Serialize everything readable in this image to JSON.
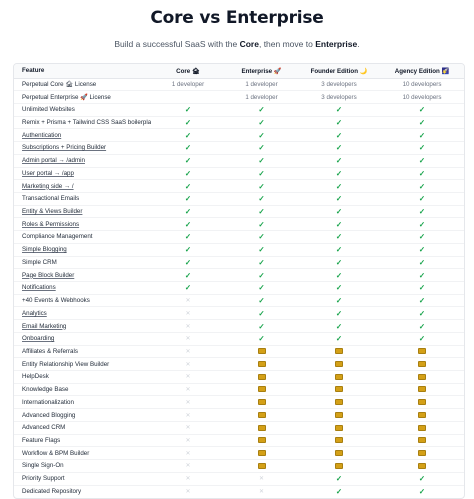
{
  "header": {
    "title": "Core vs Enterprise",
    "subtitle_pre": "Build a successful SaaS with the ",
    "subtitle_core": "Core",
    "subtitle_mid": ", then move to ",
    "subtitle_ent": "Enterprise",
    "subtitle_end": "."
  },
  "columns": [
    "Feature",
    "Core 🏚",
    "Enterprise 🚀",
    "Founder Edition 🌙",
    "Agency Edition 🌠"
  ],
  "symbols": {
    "yes": "✓",
    "no": "✕"
  },
  "colors": {
    "check": "#16a34a",
    "cross": "#d1d5db",
    "coin": "#d4a017"
  },
  "rows": [
    {
      "feature": "Perpetual Core 🏚 License",
      "link": false,
      "values": [
        "1 developer",
        "1 developer",
        "3 developers",
        "10 developers"
      ]
    },
    {
      "feature": "Perpetual Enterprise 🚀 License",
      "link": false,
      "values": [
        "",
        "1 developer",
        "3 developers",
        "10 developers"
      ]
    },
    {
      "feature": "Unlimited Websites",
      "link": false,
      "values": [
        "yes",
        "yes",
        "yes",
        "yes"
      ]
    },
    {
      "feature": "Remix + Prisma + Tailwind CSS SaaS boilerplate",
      "link": false,
      "values": [
        "yes",
        "yes",
        "yes",
        "yes"
      ]
    },
    {
      "feature": "Authentication",
      "link": true,
      "values": [
        "yes",
        "yes",
        "yes",
        "yes"
      ]
    },
    {
      "feature": "Subscriptions + Pricing Builder",
      "link": true,
      "values": [
        "yes",
        "yes",
        "yes",
        "yes"
      ]
    },
    {
      "feature": "Admin portal → /admin",
      "link": true,
      "values": [
        "yes",
        "yes",
        "yes",
        "yes"
      ]
    },
    {
      "feature": "User portal → /app",
      "link": true,
      "values": [
        "yes",
        "yes",
        "yes",
        "yes"
      ]
    },
    {
      "feature": "Marketing side → /",
      "link": true,
      "values": [
        "yes",
        "yes",
        "yes",
        "yes"
      ]
    },
    {
      "feature": "Transactional Emails",
      "link": false,
      "values": [
        "yes",
        "yes",
        "yes",
        "yes"
      ]
    },
    {
      "feature": "Entity & Views Builder",
      "link": true,
      "values": [
        "yes",
        "yes",
        "yes",
        "yes"
      ]
    },
    {
      "feature": "Roles & Permissions",
      "link": true,
      "values": [
        "yes",
        "yes",
        "yes",
        "yes"
      ]
    },
    {
      "feature": "Compliance Management",
      "link": false,
      "values": [
        "yes",
        "yes",
        "yes",
        "yes"
      ]
    },
    {
      "feature": "Simple Blogging",
      "link": true,
      "values": [
        "yes",
        "yes",
        "yes",
        "yes"
      ]
    },
    {
      "feature": "Simple CRM",
      "link": false,
      "values": [
        "yes",
        "yes",
        "yes",
        "yes"
      ]
    },
    {
      "feature": "Page Block Builder",
      "link": true,
      "values": [
        "yes",
        "yes",
        "yes",
        "yes"
      ]
    },
    {
      "feature": "Notifications",
      "link": true,
      "values": [
        "yes",
        "yes",
        "yes",
        "yes"
      ]
    },
    {
      "feature": "+40 Events & Webhooks",
      "link": false,
      "values": [
        "no",
        "yes",
        "yes",
        "yes"
      ]
    },
    {
      "feature": "Analytics",
      "link": true,
      "values": [
        "no",
        "yes",
        "yes",
        "yes"
      ]
    },
    {
      "feature": "Email Marketing",
      "link": true,
      "values": [
        "no",
        "yes",
        "yes",
        "yes"
      ]
    },
    {
      "feature": "Onboarding",
      "link": true,
      "values": [
        "no",
        "yes",
        "yes",
        "yes"
      ]
    },
    {
      "feature": "Affiliates & Referrals",
      "link": false,
      "values": [
        "no",
        "coin",
        "coin",
        "coin"
      ]
    },
    {
      "feature": "Entity Relationship View Builder",
      "link": false,
      "values": [
        "no",
        "coin",
        "coin",
        "coin"
      ]
    },
    {
      "feature": "HelpDesk",
      "link": false,
      "values": [
        "no",
        "coin",
        "coin",
        "coin"
      ]
    },
    {
      "feature": "Knowledge Base",
      "link": false,
      "values": [
        "no",
        "coin",
        "coin",
        "coin"
      ]
    },
    {
      "feature": "Internationalization",
      "link": false,
      "values": [
        "no",
        "coin",
        "coin",
        "coin"
      ]
    },
    {
      "feature": "Advanced Blogging",
      "link": false,
      "values": [
        "no",
        "coin",
        "coin",
        "coin"
      ]
    },
    {
      "feature": "Advanced CRM",
      "link": false,
      "values": [
        "no",
        "coin",
        "coin",
        "coin"
      ]
    },
    {
      "feature": "Feature Flags",
      "link": false,
      "values": [
        "no",
        "coin",
        "coin",
        "coin"
      ]
    },
    {
      "feature": "Workflow & BPM Builder",
      "link": false,
      "values": [
        "no",
        "coin",
        "coin",
        "coin"
      ]
    },
    {
      "feature": "Single Sign-On",
      "link": false,
      "values": [
        "no",
        "coin",
        "coin",
        "coin"
      ]
    },
    {
      "feature": "Priority Support",
      "link": false,
      "values": [
        "no",
        "no",
        "yes",
        "yes"
      ]
    },
    {
      "feature": "Dedicated Repository",
      "link": false,
      "values": [
        "no",
        "no",
        "yes",
        "yes"
      ]
    }
  ]
}
